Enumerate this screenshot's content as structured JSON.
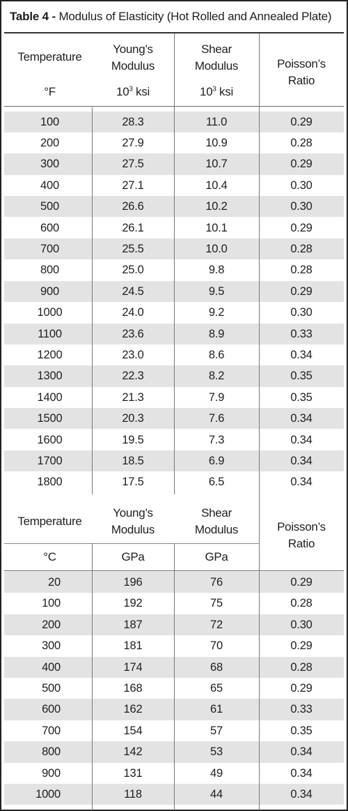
{
  "title": {
    "prefix": "Table 4 -",
    "text": "Modulus of Elasticity (Hot Rolled and Annealed Plate)"
  },
  "imperial": {
    "headers": {
      "temperature": "Temperature",
      "temperature_unit": "°F",
      "youngs": "Young’s Modulus",
      "youngs_l1": "Young’s",
      "youngs_l2": "Modulus",
      "youngs_unit_base": "10",
      "youngs_unit_exp": "3",
      "youngs_unit_suffix": " ksi",
      "shear_l1": "Shear",
      "shear_l2": "Modulus",
      "shear_unit_base": "10",
      "shear_unit_exp": "3",
      "shear_unit_suffix": " ksi",
      "poisson_l1": "Poisson’s",
      "poisson_l2": "Ratio"
    },
    "rows": [
      [
        "100",
        "28.3",
        "11.0",
        "0.29"
      ],
      [
        "200",
        "27.9",
        "10.9",
        "0.28"
      ],
      [
        "300",
        "27.5",
        "10.7",
        "0.29"
      ],
      [
        "400",
        "27.1",
        "10.4",
        "0.30"
      ],
      [
        "500",
        "26.6",
        "10.2",
        "0.30"
      ],
      [
        "600",
        "26.1",
        "10.1",
        "0.29"
      ],
      [
        "700",
        "25.5",
        "10.0",
        "0.28"
      ],
      [
        "800",
        "25.0",
        "9.8",
        "0.28"
      ],
      [
        "900",
        "24.5",
        "9.5",
        "0.29"
      ],
      [
        "1000",
        "24.0",
        "9.2",
        "0.30"
      ],
      [
        "1100",
        "23.6",
        "8.9",
        "0.33"
      ],
      [
        "1200",
        "23.0",
        "8.6",
        "0.34"
      ],
      [
        "1300",
        "22.3",
        "8.2",
        "0.35"
      ],
      [
        "1400",
        "21.3",
        "7.9",
        "0.35"
      ],
      [
        "1500",
        "20.3",
        "7.6",
        "0.34"
      ],
      [
        "1600",
        "19.5",
        "7.3",
        "0.34"
      ],
      [
        "1700",
        "18.5",
        "6.9",
        "0.34"
      ],
      [
        "1800",
        "17.5",
        "6.5",
        "0.34"
      ]
    ]
  },
  "metric": {
    "headers": {
      "temperature": "Temperature",
      "temperature_unit": "°C",
      "youngs_l1": "Young’s",
      "youngs_l2": "Modulus",
      "youngs_unit": "GPa",
      "shear_l1": "Shear",
      "shear_l2": "Modulus",
      "shear_unit": "GPa",
      "poisson_l1": "Poisson’s",
      "poisson_l2": "Ratio"
    },
    "rows": [
      [
        "20",
        "196",
        "76",
        "0.29"
      ],
      [
        "100",
        "192",
        "75",
        "0.28"
      ],
      [
        "200",
        "187",
        "72",
        "0.30"
      ],
      [
        "300",
        "181",
        "70",
        "0.29"
      ],
      [
        "400",
        "174",
        "68",
        "0.28"
      ],
      [
        "500",
        "168",
        "65",
        "0.29"
      ],
      [
        "600",
        "162",
        "61",
        "0.33"
      ],
      [
        "700",
        "154",
        "57",
        "0.35"
      ],
      [
        "800",
        "142",
        "53",
        "0.34"
      ],
      [
        "900",
        "131",
        "49",
        "0.34"
      ],
      [
        "1000",
        "118",
        "44",
        "0.34"
      ]
    ]
  },
  "colors": {
    "shade": "#e3e3e3",
    "rule": "#333333",
    "text": "#1e1e1e"
  }
}
